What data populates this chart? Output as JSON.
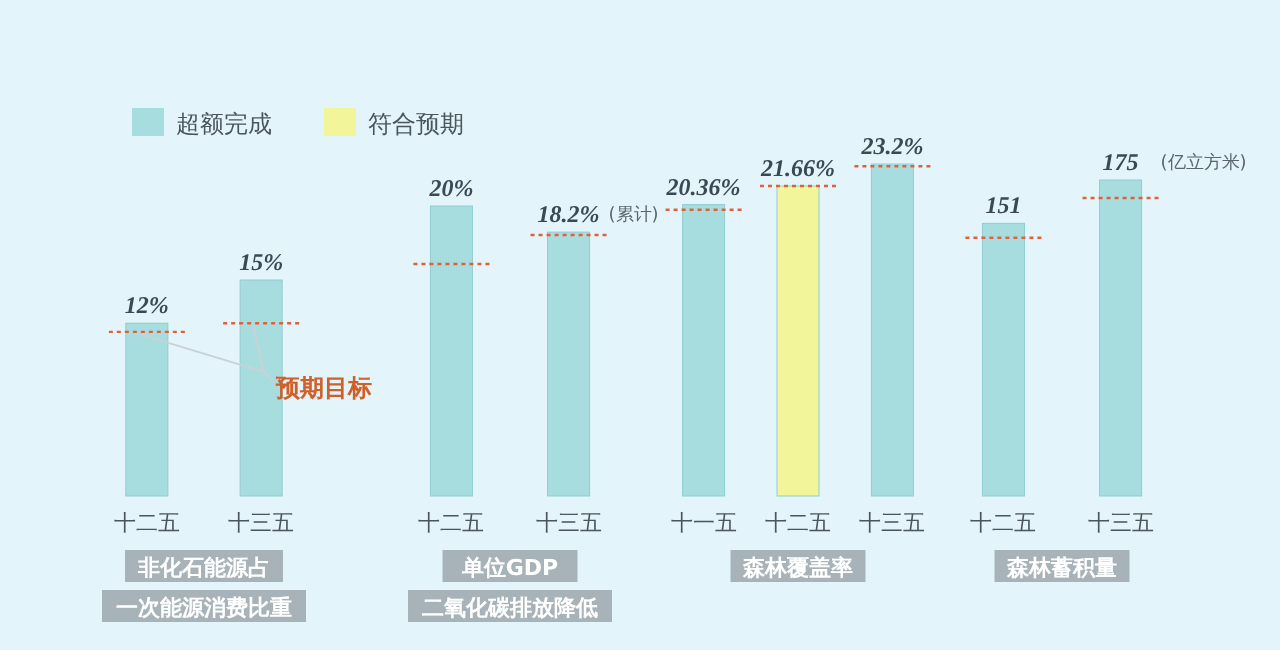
{
  "chart_data": [
    {
      "type": "bar",
      "categories": [
        "十二五",
        "十三五"
      ],
      "stacked": true,
      "legend": "top",
      "xlabel": "非化石能源占一次能源消费比重",
      "annotations": [
        "预期目标"
      ],
      "series": [
        {
          "name": "超额完成",
          "color": "#a8dde0",
          "values": [
            12,
            15
          ],
          "value_labels": [
            "12%",
            "15%"
          ]
        },
        {
          "name": "符合预期",
          "color": "#f2f59a",
          "values": [
            null,
            null
          ]
        }
      ],
      "ref_lines": [
        {
          "axis": "y",
          "value": 11.4,
          "color": "#e0603a",
          "line_style": "dotted"
        },
        {
          "axis": "y",
          "value": 12,
          "color": "#e0603a",
          "line_style": "dotted"
        }
      ]
    },
    {
      "type": "bar",
      "categories": [
        "十二五",
        "十三五"
      ],
      "xlabel": "单位GDP二氧化碳排放降低",
      "annotations": [
        "(累计)"
      ],
      "series": [
        {
          "color": "#a8dde0",
          "values": [
            20,
            18.2
          ],
          "value_labels": [
            "20%",
            "18.2%"
          ]
        }
      ],
      "ref_lines": [
        {
          "axis": "y",
          "value": 16,
          "color": "#e0603a",
          "line_style": "dotted"
        },
        {
          "axis": "y",
          "value": 18,
          "color": "#e0603a",
          "line_style": "dotted"
        }
      ]
    },
    {
      "type": "bar",
      "categories": [
        "十一五",
        "十二五",
        "十三五"
      ],
      "stacked": true,
      "xlabel": "森林覆盖率",
      "series": [
        {
          "color": "#a8dde0",
          "values": [
            20.36,
            null,
            23.2
          ],
          "value_labels": [
            "20.36%",
            null,
            "23.2%"
          ]
        },
        {
          "color": "#f2f59a",
          "values": [
            null,
            21.66,
            null
          ],
          "value_labels": [
            null,
            "21.66%",
            null
          ]
        }
      ],
      "ref_lines": [
        {
          "axis": "y",
          "value": 20,
          "color": "#e0603a",
          "line_style": "dotted"
        },
        {
          "axis": "y",
          "value": 21.66,
          "color": "#e0603a",
          "line_style": "dotted"
        },
        {
          "axis": "y",
          "value": 23.04,
          "color": "#e0603a",
          "line_style": "dotted"
        }
      ]
    },
    {
      "type": "bar",
      "categories": [
        "十二五",
        "十三五"
      ],
      "xlabel": "森林蓄积量",
      "data_labels": true,
      "annotations": [
        "(亿立方米)"
      ],
      "series": [
        {
          "color": "#a8dde0",
          "values": [
            151,
            175
          ]
        }
      ],
      "ref_lines": [
        {
          "axis": "y",
          "value": 143,
          "color": "#e0603a",
          "line_style": "dotted"
        },
        {
          "axis": "y",
          "value": 165,
          "color": "#e0603a",
          "line_style": "dotted"
        }
      ]
    }
  ]
}
